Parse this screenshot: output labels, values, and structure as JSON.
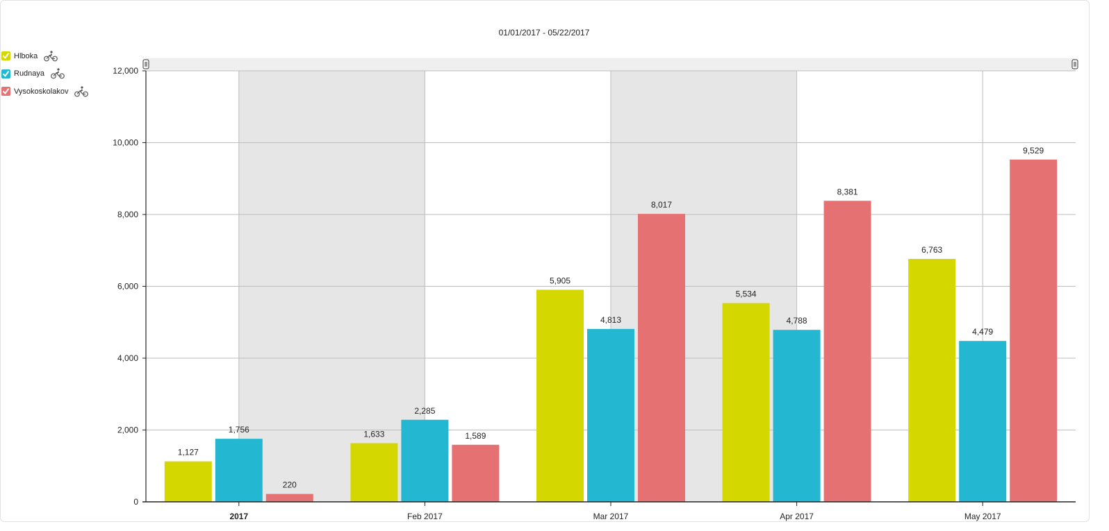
{
  "chart_data": {
    "type": "bar",
    "title": "01/01/2017 - 05/22/2017",
    "categories": [
      "2017",
      "Feb 2017",
      "Mar 2017",
      "Apr 2017",
      "May 2017"
    ],
    "series": [
      {
        "name": "Hlboka",
        "color": "#d4d700",
        "values": [
          1127,
          1633,
          5905,
          5534,
          6763
        ]
      },
      {
        "name": "Rudnaya",
        "color": "#23b7d1",
        "values": [
          1756,
          2285,
          4813,
          4788,
          4479
        ]
      },
      {
        "name": "Vysokoskolakov",
        "color": "#e57172",
        "values": [
          220,
          1589,
          8017,
          8381,
          9529
        ]
      }
    ],
    "value_labels": [
      [
        "1,127",
        "1,633",
        "5,905",
        "5,534",
        "6,763"
      ],
      [
        "1,756",
        "2,285",
        "4,813",
        "4,788",
        "4,479"
      ],
      [
        "220",
        "1,589",
        "8,017",
        "8,381",
        "9,529"
      ]
    ],
    "ylim": [
      0,
      12000
    ],
    "yticks": [
      0,
      2000,
      4000,
      6000,
      8000,
      10000,
      12000
    ],
    "ytick_labels": [
      "0",
      "2,000",
      "4,000",
      "6,000",
      "8,000",
      "10,000",
      "12,000"
    ],
    "xlabel": "",
    "ylabel": "",
    "grid": true,
    "legend_position": "top-left",
    "legend_icon": "bicycle-icon"
  }
}
